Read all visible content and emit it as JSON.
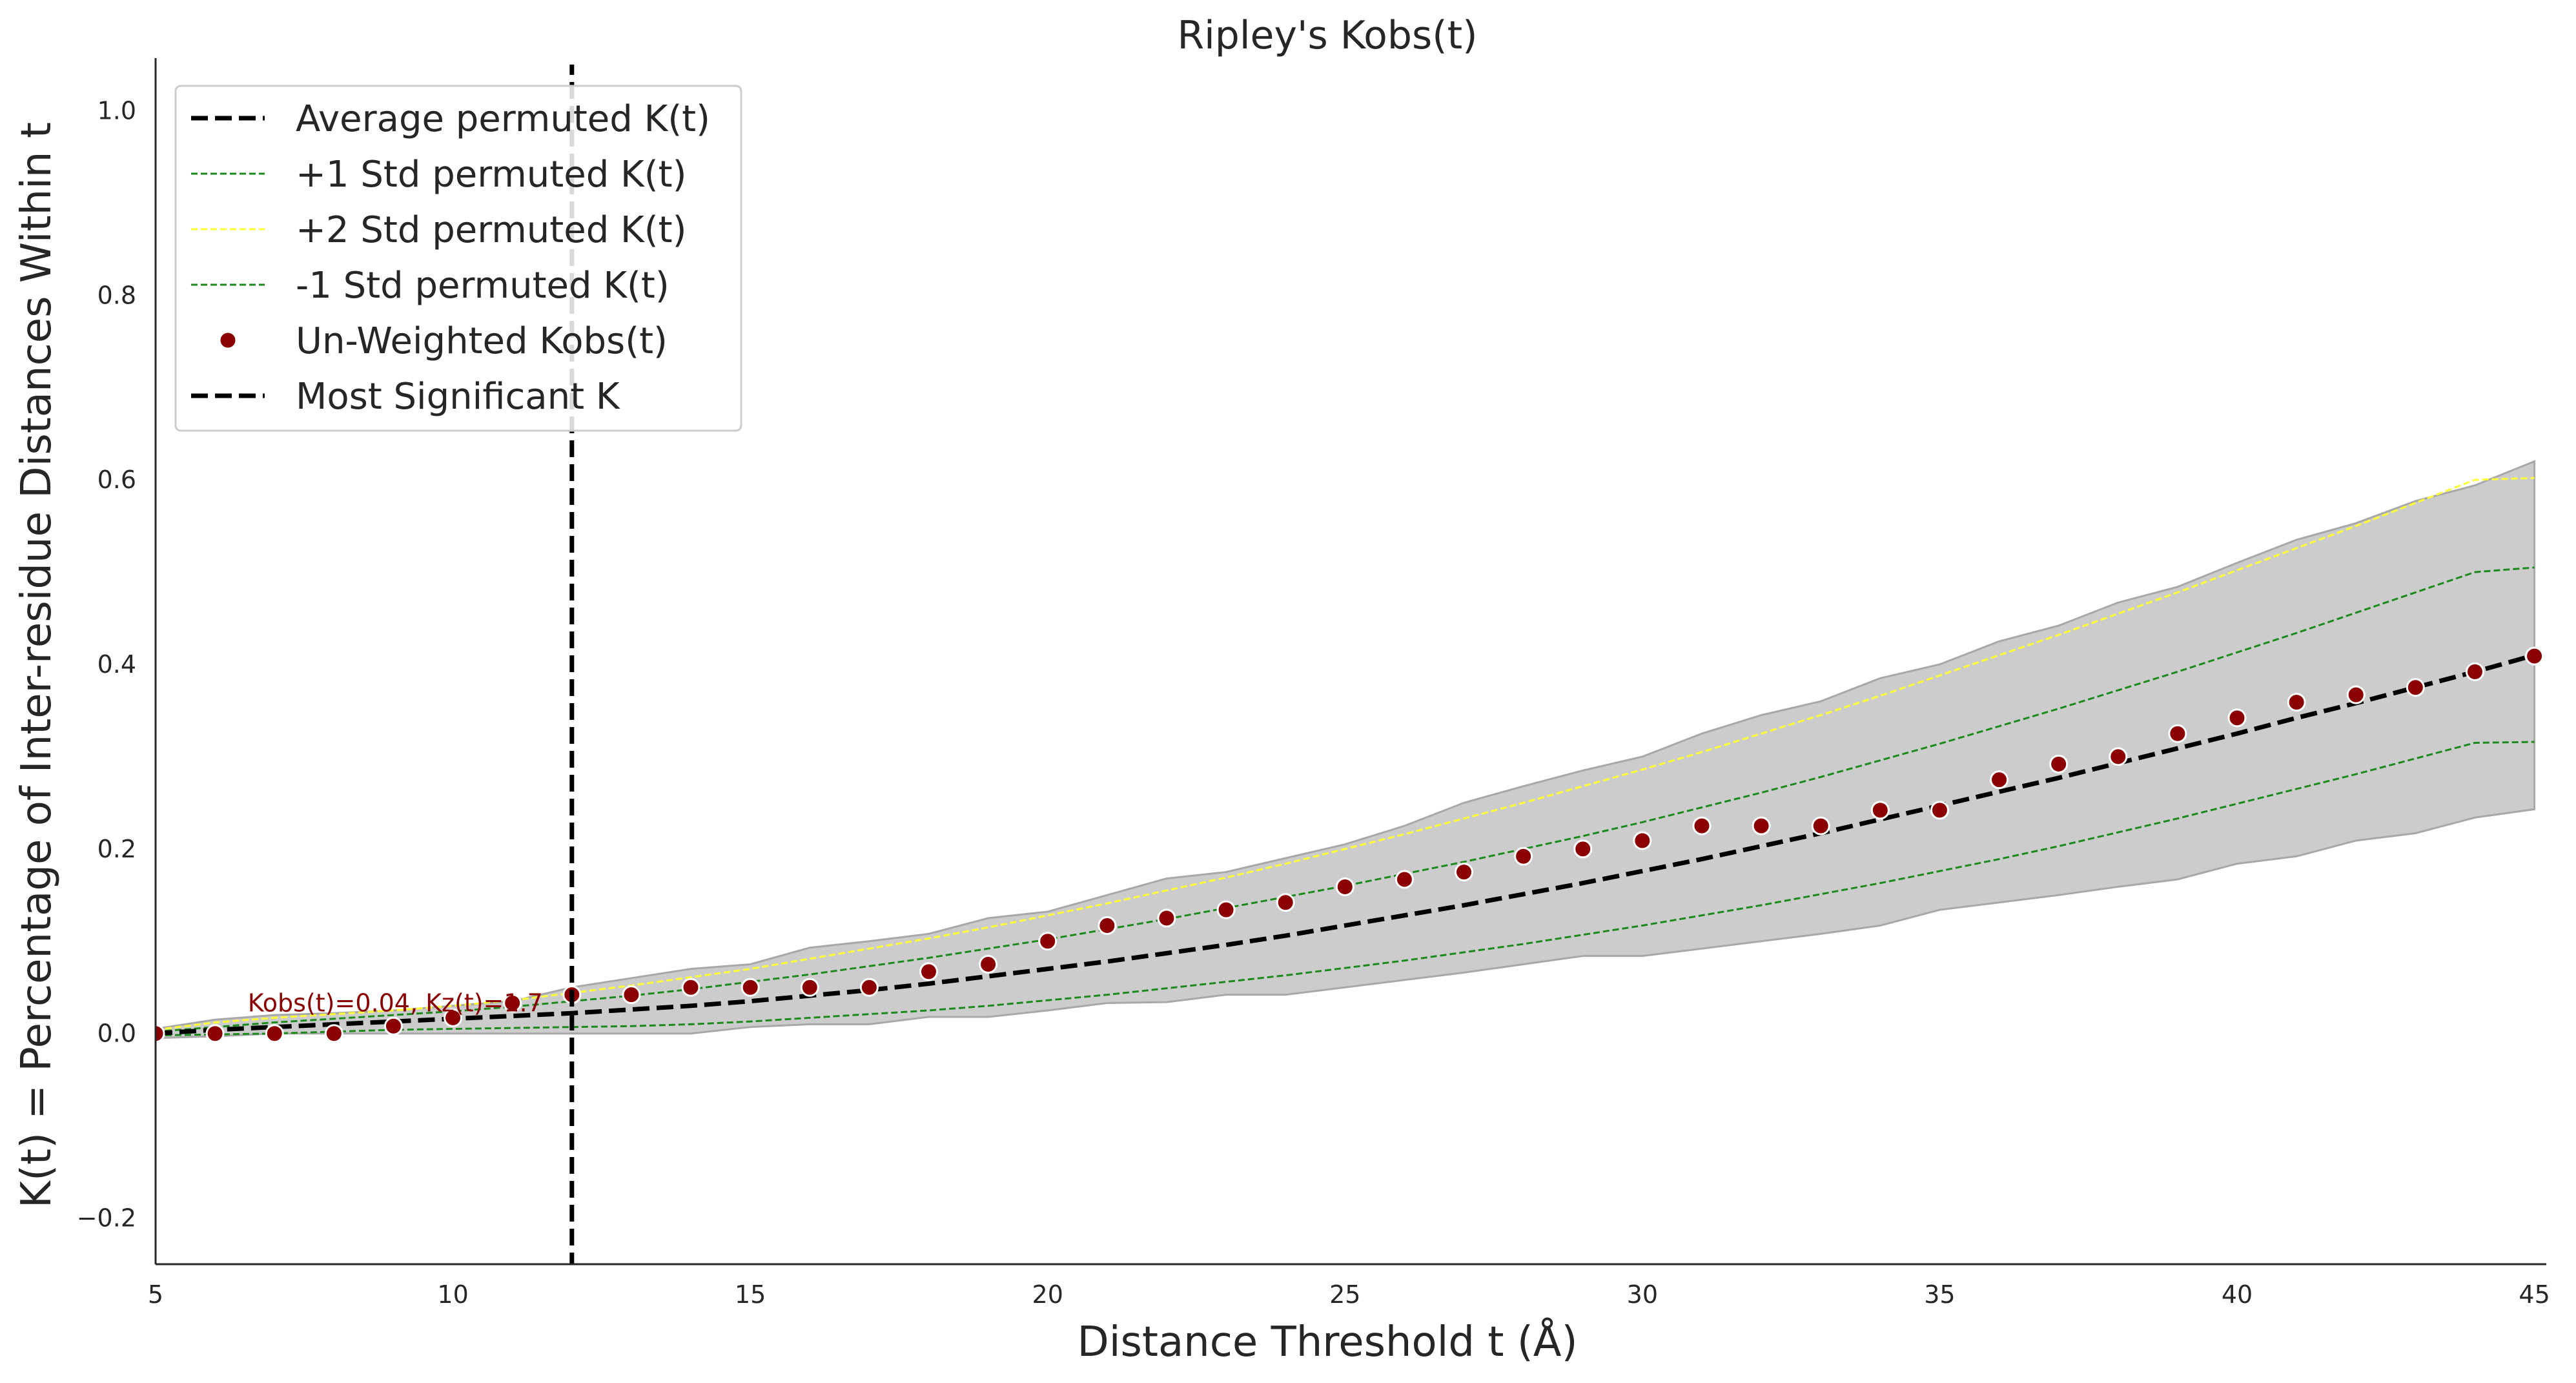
{
  "chart_data": {
    "type": "line",
    "title": "Ripley's Kobs(t)",
    "xlabel": "Distance Threshold t (Å)",
    "ylabel": "K(t) = Percentage of Inter-residue Distances Within t",
    "xlim": [
      5,
      45.2
    ],
    "ylim": [
      -0.25,
      1.05
    ],
    "xticks": [
      5,
      10,
      15,
      20,
      25,
      30,
      35,
      40,
      45
    ],
    "xtick_labels": [
      "5",
      "10",
      "15",
      "20",
      "25",
      "30",
      "35",
      "40",
      "45"
    ],
    "yticks": [
      -0.2,
      0.0,
      0.2,
      0.4,
      0.6,
      0.8,
      1.0
    ],
    "ytick_labels": [
      "−0.2",
      "0.0",
      "0.2",
      "0.4",
      "0.6",
      "0.8",
      "1.0"
    ],
    "grid": false,
    "legend_position": "upper-left",
    "x": [
      5,
      6,
      7,
      8,
      9,
      10,
      11,
      12,
      13,
      14,
      15,
      16,
      17,
      18,
      19,
      20,
      21,
      22,
      23,
      24,
      25,
      26,
      27,
      28,
      29,
      30,
      31,
      32,
      33,
      34,
      35,
      36,
      37,
      38,
      39,
      40,
      41,
      42,
      43,
      44,
      45
    ],
    "band": {
      "color": "#cccccc",
      "upper": [
        0.005,
        0.015,
        0.02,
        0.022,
        0.025,
        0.03,
        0.035,
        0.05,
        0.06,
        0.07,
        0.075,
        0.093,
        0.1,
        0.108,
        0.125,
        0.132,
        0.15,
        0.168,
        0.175,
        0.19,
        0.205,
        0.225,
        0.25,
        0.268,
        0.285,
        0.3,
        0.325,
        0.345,
        0.36,
        0.385,
        0.4,
        0.425,
        0.442,
        0.467,
        0.484,
        0.51,
        0.535,
        0.553,
        0.577,
        0.594,
        0.62
      ],
      "lower": [
        -0.005,
        -0.003,
        0.0,
        0.0,
        0.0,
        0.0,
        0.0,
        0.0,
        0.0,
        0.0,
        0.007,
        0.01,
        0.01,
        0.018,
        0.018,
        0.025,
        0.033,
        0.034,
        0.042,
        0.042,
        0.05,
        0.058,
        0.066,
        0.075,
        0.084,
        0.084,
        0.092,
        0.1,
        0.108,
        0.117,
        0.134,
        0.142,
        0.15,
        0.159,
        0.167,
        0.184,
        0.192,
        0.209,
        0.217,
        0.234,
        0.243
      ]
    },
    "series": [
      {
        "name": "Average permuted K(t)",
        "color": "#000000",
        "style": "dashed-thick",
        "values": [
          0.0,
          0.004,
          0.007,
          0.01,
          0.013,
          0.016,
          0.019,
          0.022,
          0.026,
          0.03,
          0.035,
          0.041,
          0.047,
          0.054,
          0.062,
          0.07,
          0.078,
          0.087,
          0.096,
          0.106,
          0.117,
          0.128,
          0.139,
          0.151,
          0.163,
          0.176,
          0.189,
          0.203,
          0.217,
          0.232,
          0.247,
          0.262,
          0.277,
          0.293,
          0.309,
          0.325,
          0.342,
          0.358,
          0.375,
          0.392,
          0.41
        ]
      },
      {
        "name": "+1 Std permuted K(t)",
        "color": "#1a8a1a",
        "style": "dashed-thin",
        "values": [
          0.002,
          0.007,
          0.012,
          0.016,
          0.02,
          0.024,
          0.029,
          0.035,
          0.041,
          0.048,
          0.056,
          0.064,
          0.073,
          0.082,
          0.092,
          0.102,
          0.113,
          0.124,
          0.136,
          0.148,
          0.16,
          0.173,
          0.186,
          0.2,
          0.214,
          0.229,
          0.245,
          0.261,
          0.278,
          0.296,
          0.314,
          0.333,
          0.352,
          0.372,
          0.392,
          0.413,
          0.434,
          0.456,
          0.478,
          0.5,
          0.505
        ]
      },
      {
        "name": "+2 Std permuted K(t)",
        "color": "#ffff33",
        "style": "dashed-thin",
        "values": [
          0.004,
          0.012,
          0.017,
          0.021,
          0.025,
          0.03,
          0.036,
          0.044,
          0.052,
          0.061,
          0.07,
          0.081,
          0.092,
          0.103,
          0.115,
          0.128,
          0.141,
          0.155,
          0.169,
          0.184,
          0.2,
          0.216,
          0.233,
          0.25,
          0.268,
          0.286,
          0.305,
          0.325,
          0.345,
          0.366,
          0.388,
          0.41,
          0.432,
          0.455,
          0.478,
          0.502,
          0.526,
          0.55,
          0.575,
          0.6,
          0.602
        ]
      },
      {
        "name": "-1 Std permuted K(t)",
        "color": "#1a8a1a",
        "style": "dashed-thin",
        "values": [
          -0.002,
          -0.001,
          0.0,
          0.002,
          0.004,
          0.005,
          0.006,
          0.007,
          0.008,
          0.01,
          0.013,
          0.017,
          0.021,
          0.025,
          0.03,
          0.036,
          0.042,
          0.049,
          0.056,
          0.063,
          0.071,
          0.079,
          0.088,
          0.097,
          0.107,
          0.117,
          0.128,
          0.139,
          0.151,
          0.163,
          0.176,
          0.189,
          0.203,
          0.218,
          0.233,
          0.249,
          0.265,
          0.281,
          0.298,
          0.315,
          0.316
        ]
      }
    ],
    "observed": {
      "name": "Un-Weighted Kobs(t)",
      "color": "#8b0000",
      "values": [
        0.0,
        0.0,
        0.0,
        0.0,
        0.008,
        0.017,
        0.033,
        0.042,
        0.042,
        0.05,
        0.05,
        0.05,
        0.05,
        0.067,
        0.075,
        0.1,
        0.117,
        0.125,
        0.134,
        0.142,
        0.159,
        0.167,
        0.175,
        0.192,
        0.2,
        0.209,
        0.225,
        0.225,
        0.225,
        0.242,
        0.242,
        0.275,
        0.292,
        0.3,
        0.325,
        0.342,
        0.359,
        0.367,
        0.375,
        0.392,
        0.409
      ]
    },
    "vline": {
      "name": "Most Significant K",
      "x": 12,
      "color": "#000000"
    },
    "annotation": {
      "text": "Kobs(t)=0.04, Kz(t)=1.7",
      "x": 6.55,
      "y": 0.024,
      "color": "#8b0000"
    }
  }
}
